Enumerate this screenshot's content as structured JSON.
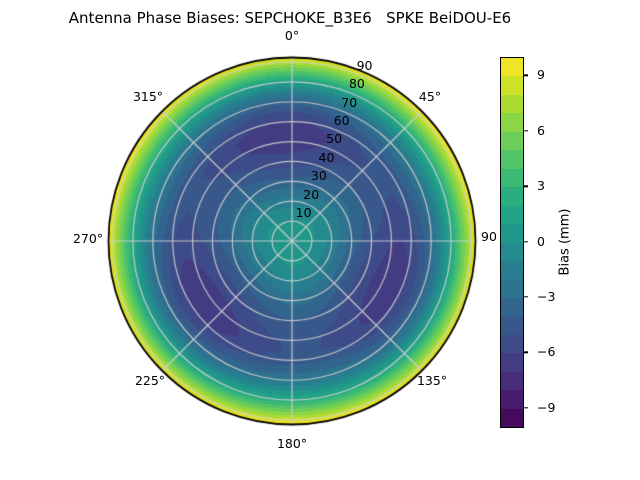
{
  "figure": {
    "background": "#ffffff",
    "grid_color": "#d0d0d0",
    "outline_color": "#000000"
  },
  "chart_data": {
    "type": "heatmap",
    "projection": "polar",
    "title": "Antenna Phase Biases: SEPCHOKE_B3E6   SPKE BeiDOU-E6",
    "theta_zero_location": "N",
    "theta_direction": "clockwise",
    "theta_ticks": [
      {
        "angle_deg": 0,
        "label": "0°"
      },
      {
        "angle_deg": 45,
        "label": "45°"
      },
      {
        "angle_deg": 90,
        "label": "90"
      },
      {
        "angle_deg": 135,
        "label": "135°"
      },
      {
        "angle_deg": 180,
        "label": "180°"
      },
      {
        "angle_deg": 225,
        "label": "225°"
      },
      {
        "angle_deg": 270,
        "label": "270°"
      },
      {
        "angle_deg": 315,
        "label": "315°"
      }
    ],
    "radial_ticks": [
      {
        "r": 10,
        "label": "10"
      },
      {
        "r": 20,
        "label": "20"
      },
      {
        "r": 30,
        "label": "30"
      },
      {
        "r": 40,
        "label": "40"
      },
      {
        "r": 50,
        "label": "50"
      },
      {
        "r": 60,
        "label": "60"
      },
      {
        "r": 70,
        "label": "70"
      },
      {
        "r": 80,
        "label": "80"
      },
      {
        "r": 90,
        "label": "90"
      }
    ],
    "radial_tick_label_angle_deg": 22.5,
    "r_max": 92,
    "value_range": [
      -10,
      10
    ],
    "contour_step_mm": 1,
    "colormap": "viridis",
    "band_colors": [
      "#450a5c",
      "#471b6d",
      "#462c7a",
      "#433c83",
      "#3e4b89",
      "#38588c",
      "#32658d",
      "#2d728e",
      "#287e8e",
      "#238b8d",
      "#21978a",
      "#22a286",
      "#2bae7f",
      "#3cb975",
      "#52c468",
      "#6dcd59",
      "#8bd546",
      "#acdc31",
      "#cde126",
      "#ede525"
    ],
    "radial_profile_mm": {
      "zenith_deg": [
        0,
        10,
        20,
        30,
        40,
        50,
        55,
        60,
        65,
        70,
        75,
        80,
        85,
        88,
        90,
        92
      ],
      "bias_mm": [
        0.7,
        0.2,
        -1.2,
        -3.2,
        -4.8,
        -5.7,
        -5.8,
        -5.3,
        -4.2,
        -2.8,
        -0.8,
        1.8,
        5.0,
        6.8,
        8.2,
        9.7
      ]
    },
    "azimuthal_modulation": {
      "harmonic": 3,
      "amplitude_mm": 0.9,
      "phase_deg": 115,
      "peak_zenith_deg": 55,
      "sigma_deg": 25
    },
    "colorbar": {
      "label": "Bias (mm)",
      "ticks": [
        {
          "value": 9,
          "label": "9"
        },
        {
          "value": 6,
          "label": "6"
        },
        {
          "value": 3,
          "label": "3"
        },
        {
          "value": 0,
          "label": "0"
        },
        {
          "value": -3,
          "label": "−3"
        },
        {
          "value": -6,
          "label": "−6"
        },
        {
          "value": -9,
          "label": "−9"
        }
      ]
    }
  }
}
